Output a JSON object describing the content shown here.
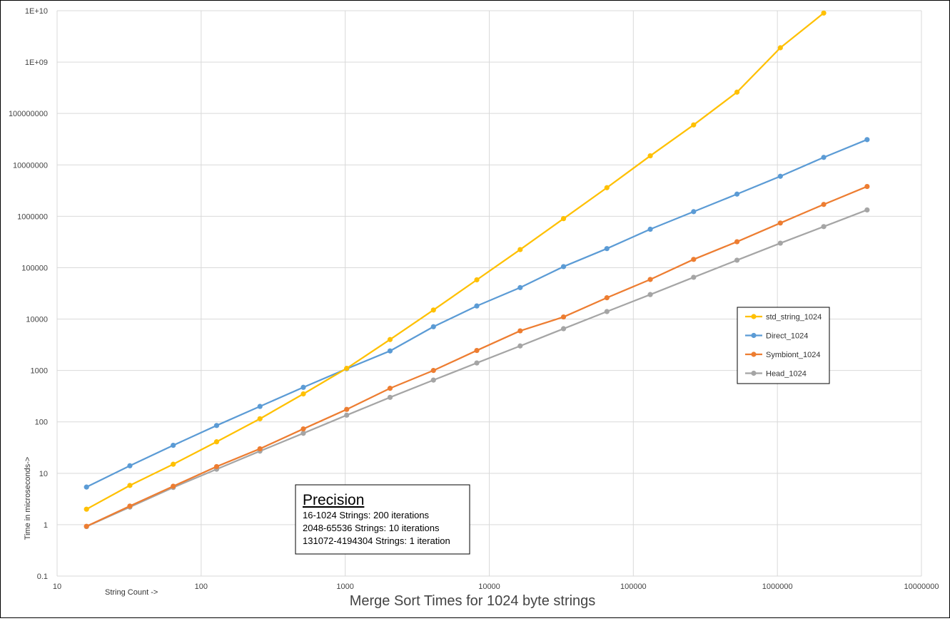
{
  "chart_data": {
    "type": "line",
    "title": "Merge Sort Times for 1024 byte strings",
    "xlabel": "String Count ->",
    "ylabel": "Time in microseconds->",
    "x_scale": "log",
    "y_scale": "log",
    "xlim": [
      10,
      10000000
    ],
    "ylim": [
      0.1,
      10000000000
    ],
    "x_ticks": [
      "10",
      "100",
      "1000",
      "10000",
      "100000",
      "1000000",
      "10000000"
    ],
    "y_ticks": [
      "0.1",
      "1",
      "10",
      "100",
      "1000",
      "10000",
      "100000",
      "1000000",
      "10000000",
      "100000000",
      "1E+09",
      "1E+10"
    ],
    "grid": true,
    "legend_position": "right",
    "x": [
      16,
      32,
      64,
      128,
      256,
      512,
      1024,
      2048,
      4096,
      8192,
      16384,
      32768,
      65536,
      131072,
      262144,
      524288,
      1048576,
      2097152,
      4194304
    ],
    "series": [
      {
        "name": "std_string_1024",
        "color": "#FFC000",
        "values": [
          2.0,
          5.8,
          15,
          41,
          115,
          350,
          1100,
          4000,
          15000,
          58000,
          225000,
          900000,
          3600000,
          15000000,
          60000000,
          260000000,
          1900000000,
          9000000000,
          null
        ]
      },
      {
        "name": "Direct_1024",
        "color": "#5B9BD5",
        "values": [
          5.4,
          14,
          35,
          85,
          200,
          470,
          1080,
          2400,
          7100,
          18000,
          41000,
          105000,
          235000,
          560000,
          1230000,
          2700000,
          6000000,
          14000000,
          31000000
        ]
      },
      {
        "name": "Symbiont_1024",
        "color": "#ED7D31",
        "values": [
          0.93,
          2.3,
          5.6,
          13.5,
          30,
          73,
          175,
          450,
          1000,
          2450,
          5900,
          11000,
          26000,
          59000,
          145000,
          320000,
          740000,
          1700000,
          3800000
        ]
      },
      {
        "name": "Head_1024",
        "color": "#A5A5A5",
        "values": [
          0.92,
          2.2,
          5.3,
          12,
          27,
          60,
          135,
          300,
          650,
          1400,
          3000,
          6500,
          14000,
          30000,
          65000,
          140000,
          300000,
          630000,
          1330000
        ]
      }
    ]
  },
  "precision_box": {
    "heading": "Precision",
    "lines": [
      "16-1024 Strings: 200 iterations",
      "2048-65536  Strings: 10 iterations",
      "131072-4194304  Strings: 1 iteration"
    ]
  }
}
